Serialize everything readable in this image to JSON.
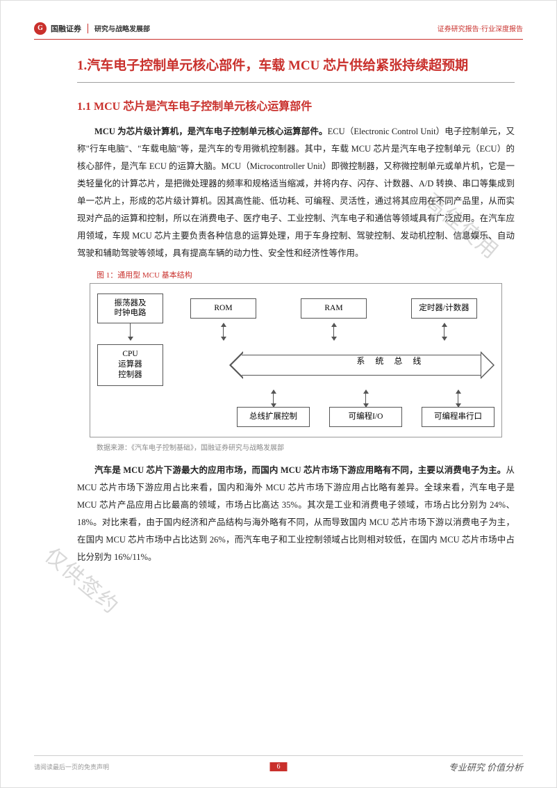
{
  "header": {
    "company": "国融证券",
    "logo_glyph": "G",
    "department": "研究与战略发展部",
    "doc_type": "证券研究报告·行业深度报告"
  },
  "title_h1": "1.汽车电子控制单元核心部件，车载 MCU 芯片供给紧张持续超预期",
  "title_h2": "1.1 MCU 芯片是汽车电子控制单元核心运算部件",
  "para1_bold": "MCU 为芯片级计算机，是汽车电子控制单元核心运算部件。",
  "para1_rest": "ECU（Electronic Control Unit）电子控制单元，又称\"行车电脑\"、\"车载电脑\"等，是汽车的专用微机控制器。其中，车载 MCU 芯片是汽车电子控制单元（ECU）的核心部件，是汽车 ECU 的运算大脑。MCU（Microcontroller Unit）即微控制器，又称微控制单元或单片机，它是一类轻量化的计算芯片，是把微处理器的频率和规格适当缩减，并将内存、闪存、计数器、A/D 转换、串口等集成到单一芯片上，形成的芯片级计算机。因其高性能、低功耗、可编程、灵活性，通过将其应用在不同产品里，从而实现对产品的运算和控制，所以在消费电子、医疗电子、工业控制、汽车电子和通信等领域具有广泛应用。在汽车应用领域，车规 MCU 芯片主要负责各种信息的运算处理，用于车身控制、驾驶控制、发动机控制、信息娱乐、自动驾驶和辅助驾驶等领域，具有提高车辆的动力性、安全性和经济性等作用。",
  "figure": {
    "caption": "图 1：通用型 MCU 基本结构",
    "nodes": {
      "osc": "振荡器及\n时钟电路",
      "rom": "ROM",
      "ram": "RAM",
      "timer": "定时器/计数器",
      "cpu": "CPU\n运算器\n控制器",
      "bus": "系 统 总 线",
      "bus_ext": "总线扩展控制",
      "prog_io": "可编程I/O",
      "prog_serial": "可编程串行口"
    },
    "source": "数据来源：《汽车电子控制基础》，国融证券研究与战略发展部",
    "colors": {
      "border": "#555555",
      "caption": "#c9302c",
      "source": "#888888",
      "background": "#ffffff"
    }
  },
  "para2_bold": "汽车是 MCU 芯片下游最大的应用市场，而国内 MCU 芯片市场下游应用略有不同，主要以消费电子为主。",
  "para2_rest": "从 MCU 芯片市场下游应用占比来看，国内和海外 MCU 芯片市场下游应用占比略有差异。全球来看，汽车电子是 MCU 芯片产品应用占比最高的领域，市场占比高达 35%。其次是工业和消费电子领域，市场占比分别为 24%、18%。对比来看，由于国内经济和产品结构与海外略有不同，从而导致国内 MCU 芯片市场下游以消费电子为主，在国内 MCU 芯片市场中占比达到 26%，而汽车电子和工业控制领域占比则相对较低，在国内 MCU 芯片市场中占比分别为 16%/11%。",
  "watermarks": {
    "w1": "仅供签约",
    "w2": "使用",
    "w3": "高佳使用"
  },
  "footer": {
    "left": "请阅读最后一页的免责声明",
    "page": "6",
    "right": "专业研究 价值分析"
  },
  "theme": {
    "accent": "#c9302c",
    "text": "#222222",
    "bg": "#ffffff"
  }
}
